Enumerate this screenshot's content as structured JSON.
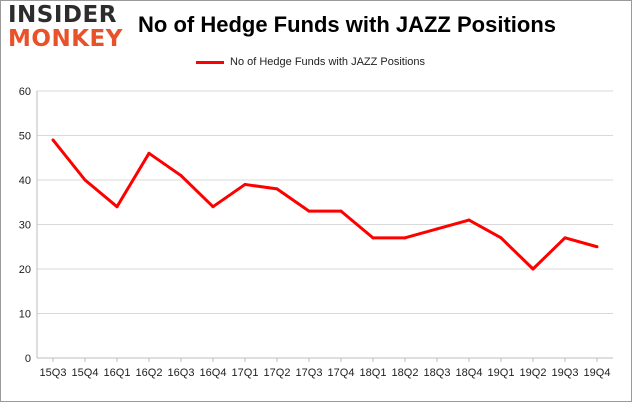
{
  "logo": {
    "line1": "INSIDER",
    "line2": "MONKEY"
  },
  "colors": {
    "series": "#ff0000",
    "grid": "#d9d9d9",
    "logo_accent": "#e8512a"
  },
  "chart_data": {
    "type": "line",
    "title": "No of Hedge Funds with JAZZ Positions",
    "xlabel": "",
    "ylabel": "",
    "categories": [
      "15Q3",
      "15Q4",
      "16Q1",
      "16Q2",
      "16Q3",
      "16Q4",
      "17Q1",
      "17Q2",
      "17Q3",
      "17Q4",
      "18Q1",
      "18Q2",
      "18Q3",
      "18Q4",
      "19Q1",
      "19Q2",
      "19Q3",
      "19Q4"
    ],
    "series": [
      {
        "name": "No of Hedge Funds with JAZZ Positions",
        "values": [
          49,
          40,
          34,
          46,
          41,
          34,
          39,
          38,
          33,
          33,
          27,
          27,
          29,
          31,
          27,
          20,
          27,
          25
        ]
      }
    ],
    "ylim": [
      0,
      60
    ],
    "yticks": [
      0,
      10,
      20,
      30,
      40,
      50,
      60
    ],
    "grid": true,
    "legend_position": "top-center"
  }
}
